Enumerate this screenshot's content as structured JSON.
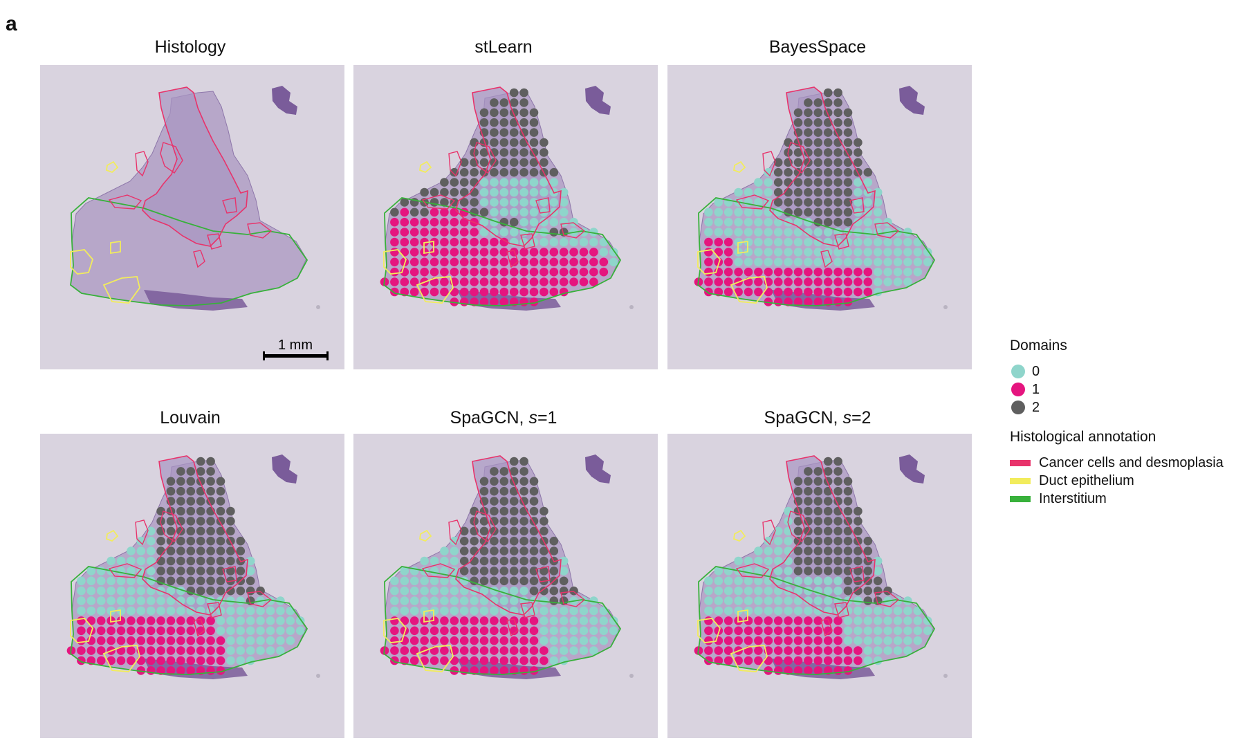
{
  "panel_label": "a",
  "panels": [
    {
      "title": "Histology",
      "mode": "none"
    },
    {
      "title": "stLearn",
      "mode": "stlearn"
    },
    {
      "title": "BayesSpace",
      "mode": "bayes"
    },
    {
      "title": "Louvain",
      "mode": "louvain"
    },
    {
      "title_prefix": "SpaGCN, ",
      "title_var": "s",
      "title_suffix": "=1",
      "mode": "spagcn1"
    },
    {
      "title_prefix": "SpaGCN, ",
      "title_var": "s",
      "title_suffix": "=2",
      "mode": "spagcn2"
    }
  ],
  "scale_bar": {
    "label": "1 mm"
  },
  "legend": {
    "domains_title": "Domains",
    "domains": [
      {
        "label": "0",
        "color": "#8fd5cb"
      },
      {
        "label": "1",
        "color": "#e5157f"
      },
      {
        "label": "2",
        "color": "#5f5f5f"
      }
    ],
    "annotation_title": "Histological annotation",
    "annotations": [
      {
        "label": "Cancer cells and desmoplasia",
        "color": "#e8336b"
      },
      {
        "label": "Duct epithelium",
        "color": "#f2ec5c"
      },
      {
        "label": "Interstitium",
        "color": "#38b13b"
      }
    ]
  },
  "colors": {
    "background": "#d9d3df",
    "tissue": "#b7a7c9",
    "tissue_dark": "#7a5c9a"
  }
}
